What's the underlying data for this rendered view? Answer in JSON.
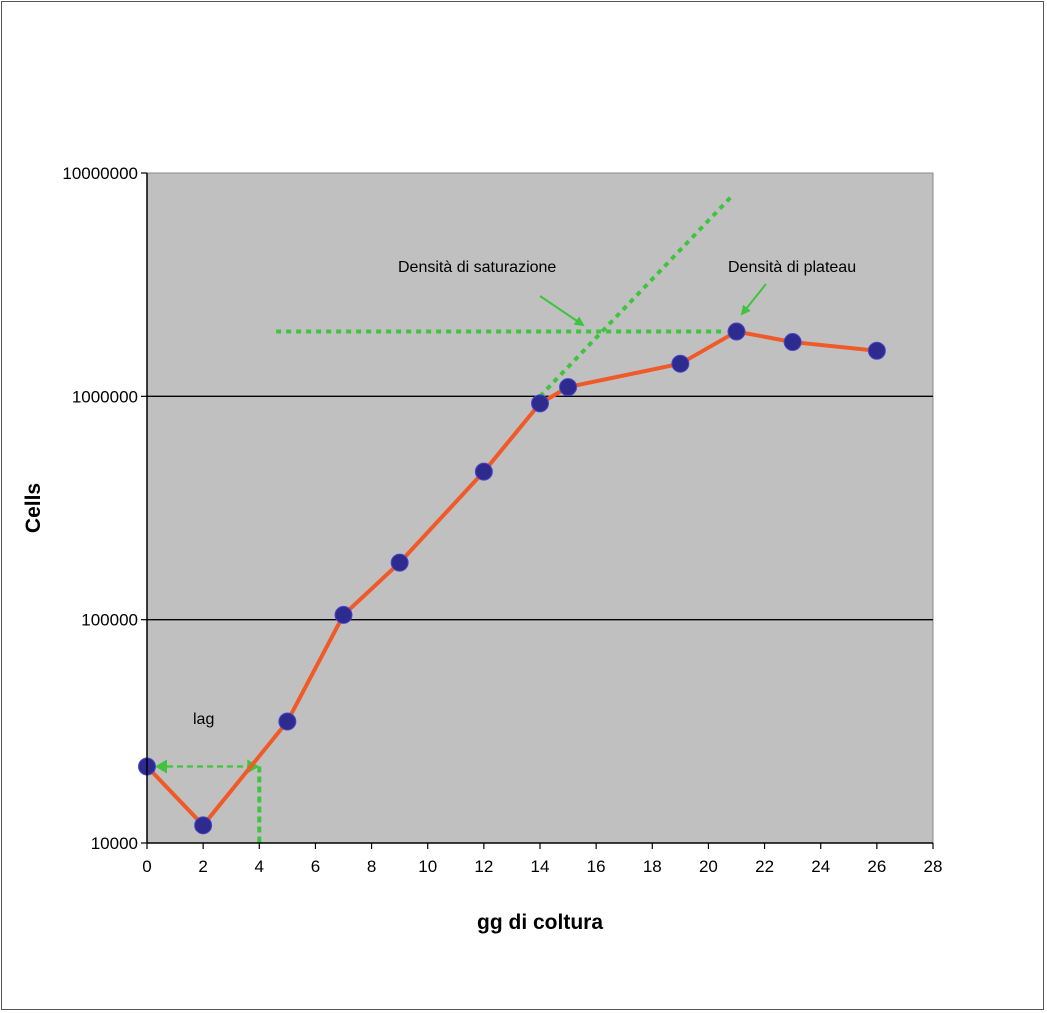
{
  "chart_data": {
    "type": "line",
    "title": "",
    "xlabel": "gg di coltura",
    "ylabel": "Cells",
    "x_scale": "linear",
    "y_scale": "log",
    "xlim": [
      0,
      28
    ],
    "ylim": [
      10000,
      10000000
    ],
    "x_ticks": [
      "0",
      "2",
      "4",
      "6",
      "8",
      "10",
      "12",
      "14",
      "16",
      "18",
      "20",
      "22",
      "24",
      "26",
      "28"
    ],
    "y_ticks": [
      "10000",
      "100000",
      "1000000",
      "10000000"
    ],
    "grid": "horizontal major gridlines",
    "legend": "none",
    "series": [
      {
        "x": [
          0,
          2,
          5,
          7,
          9,
          12,
          14,
          15,
          19,
          21,
          23,
          26
        ],
        "y": [
          22000,
          12000,
          35000,
          105000,
          180000,
          460000,
          930000,
          1100000,
          1400000,
          1950000,
          1750000,
          1600000
        ]
      }
    ],
    "annotations": {
      "lag": "lag",
      "saturation": "Densità di saturazione",
      "plateau": "Densità di plateau"
    },
    "colors": {
      "plot_background": "#c0c0c0",
      "line": "#f05a28",
      "marker": "#2e2b8f",
      "guide": "#3fc43f"
    }
  }
}
